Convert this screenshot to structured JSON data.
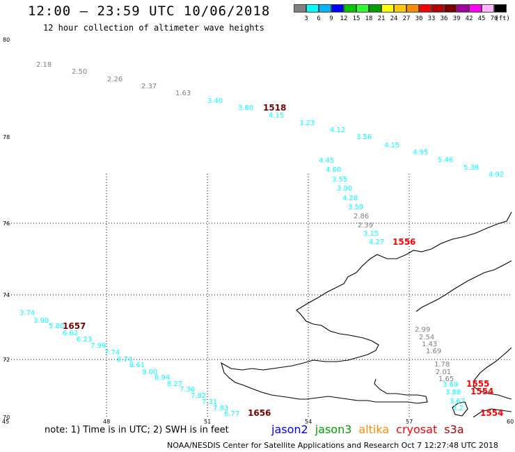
{
  "title": "12:00 — 23:59 UTC 10/06/2018",
  "subtitle": "12 hour collection of altimeter wave heights",
  "colorbar": {
    "colors": [
      "#808080",
      "#00ffff",
      "#00b4ff",
      "#0000ff",
      "#00c800",
      "#32ff32",
      "#00a000",
      "#ffff00",
      "#ffc800",
      "#ff8c00",
      "#ff0000",
      "#b40000",
      "#780000",
      "#a000a0",
      "#ff00ff",
      "#ffb4ff",
      "#000000"
    ],
    "labels": [
      "3",
      "6",
      "9",
      "12",
      "15",
      "18",
      "21",
      "24",
      "27",
      "30",
      "33",
      "36",
      "39",
      "42",
      "45",
      "70",
      "(ft)"
    ]
  },
  "note": "note: 1) Time is in UTC; 2) SWH is in feet",
  "satellites": [
    {
      "name": "jason2",
      "color": "#0000ff"
    },
    {
      "name": "jason3",
      "color": "#00a000"
    },
    {
      "name": "altika",
      "color": "#ff8c00"
    },
    {
      "name": "cryosat",
      "color": "#ff0000"
    },
    {
      "name": "s3a",
      "color": "#b40000"
    }
  ],
  "footer": "NOAA/NESDIS Center for Satellite Applications and Research   Oct  7 12:27:48 UTC 2018",
  "chart_data": {
    "type": "map",
    "lon_range": [
      45,
      60
    ],
    "lat_range": [
      70,
      80
    ],
    "lon_ticks": [
      "45",
      "48",
      "51",
      "54",
      "57",
      "60"
    ],
    "lat_ticks": [
      "80",
      "78",
      "76",
      "74",
      "72",
      "70"
    ],
    "grid": true,
    "wave_heights": [
      {
        "v": "2.18",
        "c": "#808080"
      },
      {
        "v": "2.50",
        "c": "#808080"
      },
      {
        "v": "2.26",
        "c": "#808080"
      },
      {
        "v": "2.37",
        "c": "#808080"
      },
      {
        "v": "1.63",
        "c": "#808080"
      },
      {
        "v": "3.40",
        "c": "#00ffff"
      },
      {
        "v": "3.80",
        "c": "#00ffff"
      },
      {
        "v": "4.15",
        "c": "#00ffff"
      },
      {
        "v": "3.23",
        "c": "#00ffff"
      },
      {
        "v": "4.12",
        "c": "#00ffff"
      },
      {
        "v": "3.56",
        "c": "#00ffff"
      },
      {
        "v": "4.15",
        "c": "#00ffff"
      },
      {
        "v": "4.95",
        "c": "#00ffff"
      },
      {
        "v": "5.46",
        "c": "#00ffff"
      },
      {
        "v": "5.38",
        "c": "#00ffff"
      },
      {
        "v": "4.92",
        "c": "#00ffff"
      },
      {
        "v": "4.45",
        "c": "#00ffff"
      },
      {
        "v": "4.60",
        "c": "#00ffff"
      },
      {
        "v": "3.55",
        "c": "#00ffff"
      },
      {
        "v": "3.90",
        "c": "#00ffff"
      },
      {
        "v": "4.28",
        "c": "#00ffff"
      },
      {
        "v": "3.59",
        "c": "#00ffff"
      },
      {
        "v": "2.86",
        "c": "#808080"
      },
      {
        "v": "2.39",
        "c": "#808080"
      },
      {
        "v": "3.15",
        "c": "#00ffff"
      },
      {
        "v": "4.27",
        "c": "#00ffff"
      },
      {
        "v": "3.74",
        "c": "#00ffff"
      },
      {
        "v": "3.90",
        "c": "#00ffff"
      },
      {
        "v": "5.80",
        "c": "#00ffff"
      },
      {
        "v": "6.62",
        "c": "#00ffff"
      },
      {
        "v": "6.23",
        "c": "#00ffff"
      },
      {
        "v": "7.99",
        "c": "#00ffff"
      },
      {
        "v": "7.74",
        "c": "#00ffff"
      },
      {
        "v": "8.74",
        "c": "#00ffff"
      },
      {
        "v": "8.61",
        "c": "#00ffff"
      },
      {
        "v": "9.00",
        "c": "#00ffff"
      },
      {
        "v": "8.94",
        "c": "#00ffff"
      },
      {
        "v": "8.27",
        "c": "#00ffff"
      },
      {
        "v": "7.36",
        "c": "#00ffff"
      },
      {
        "v": "7.82",
        "c": "#00ffff"
      },
      {
        "v": "7.31",
        "c": "#00ffff"
      },
      {
        "v": "7.83",
        "c": "#00ffff"
      },
      {
        "v": "6.77",
        "c": "#00ffff"
      },
      {
        "v": "2.99",
        "c": "#808080"
      },
      {
        "v": "2.54",
        "c": "#808080"
      },
      {
        "v": "1.43",
        "c": "#808080"
      },
      {
        "v": "1.69",
        "c": "#808080"
      },
      {
        "v": "1.78",
        "c": "#808080"
      },
      {
        "v": "2.01",
        "c": "#808080"
      },
      {
        "v": "1.65",
        "c": "#808080"
      },
      {
        "v": "3.69",
        "c": "#00ffff"
      },
      {
        "v": "3.88",
        "c": "#00ffff"
      },
      {
        "v": "3.67",
        "c": "#00ffff"
      },
      {
        "v": "3.2",
        "c": "#00ffff"
      }
    ],
    "pass_times": [
      {
        "v": "1518",
        "c": "#780000"
      },
      {
        "v": "1556",
        "c": "#ff0000"
      },
      {
        "v": "1657",
        "c": "#780000"
      },
      {
        "v": "1656",
        "c": "#780000"
      },
      {
        "v": "1555",
        "c": "#ff0000"
      },
      {
        "v": "1554",
        "c": "#ff0000"
      },
      {
        "v": "1554",
        "c": "#ff0000"
      }
    ]
  }
}
